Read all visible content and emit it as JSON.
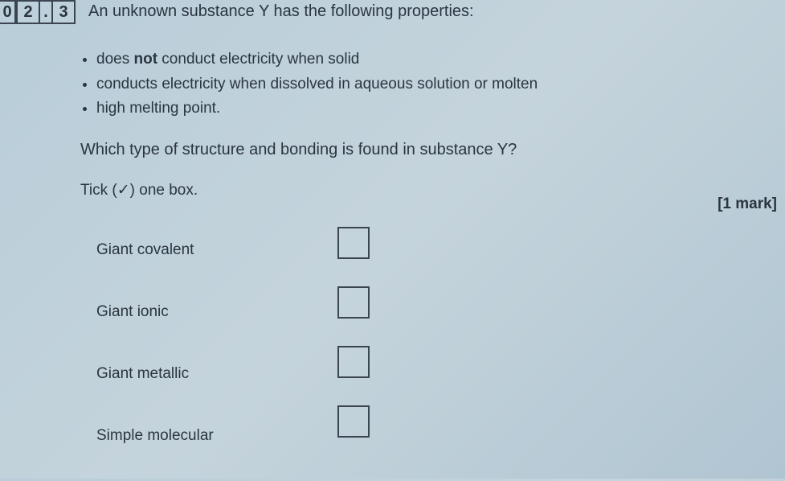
{
  "question_number": {
    "partial": "0",
    "box1": "2",
    "dot": ".",
    "box2": "3"
  },
  "stem": "An unknown substance Y has the following properties:",
  "bullets": [
    {
      "pre": "does ",
      "bold": "not",
      "post": " conduct electricity when solid"
    },
    {
      "pre": "conducts electricity when dissolved in aqueous solution or molten",
      "bold": "",
      "post": ""
    },
    {
      "pre": "high melting point.",
      "bold": "",
      "post": ""
    }
  ],
  "question": "Which type of structure and bonding is found in substance Y?",
  "tick_instruction": "Tick (✓) one box.",
  "mark": "[1 mark]",
  "options": [
    "Giant covalent",
    "Giant ionic",
    "Giant metallic",
    "Simple molecular"
  ],
  "colors": {
    "text": "#2a3540",
    "border": "#3a4550",
    "bg_start": "#b8cdd9",
    "bg_end": "#b0c5d2"
  }
}
